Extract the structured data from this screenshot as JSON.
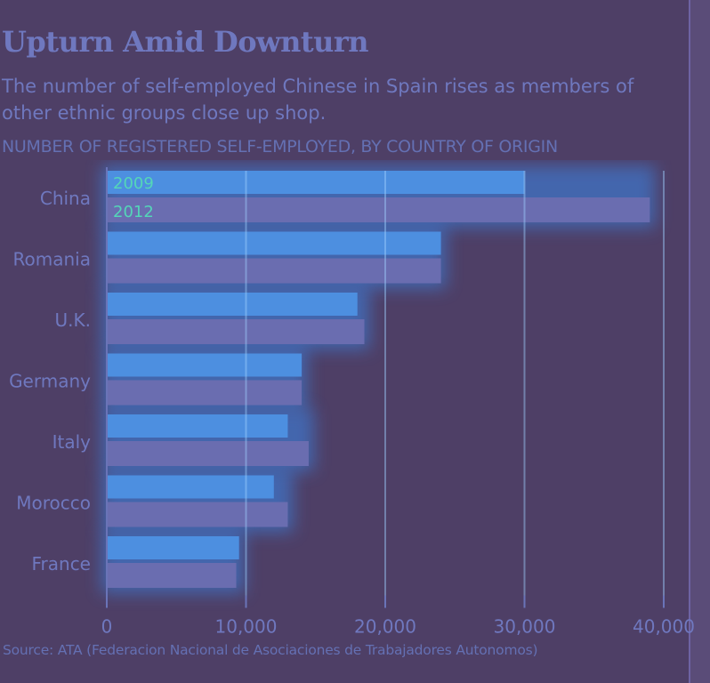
{
  "chart_data": {
    "type": "bar",
    "orientation": "horizontal",
    "title": "Upturn Amid Downturn",
    "subtitle": "The number of self-employed Chinese in Spain rises as members of other ethnic groups close up shop.",
    "axis_title": "NUMBER OF REGISTERED SELF-EMPLOYED, BY COUNTRY OF ORIGIN",
    "source": "Source: ATA (Federacion Nacional de Asociaciones de Trabajadores Autonomos)",
    "categories": [
      "China",
      "Romania",
      "U.K.",
      "Germany",
      "Italy",
      "Morocco",
      "France"
    ],
    "series": [
      {
        "name": "2009",
        "values": [
          30000,
          24000,
          18000,
          14000,
          13000,
          12000,
          9500
        ]
      },
      {
        "name": "2012",
        "values": [
          39000,
          24000,
          18500,
          14000,
          14500,
          13000,
          9300
        ]
      }
    ],
    "xlim": [
      0,
      40000
    ],
    "xticks": [
      0,
      10000,
      20000,
      30000,
      40000
    ],
    "xtick_labels": [
      "0",
      "10,000",
      "20,000",
      "30,000",
      "40,000"
    ],
    "grid": true,
    "legend": "inside-top-left",
    "colors": {
      "2009": "#4d8fe0",
      "2012": "#6a6db0"
    }
  }
}
